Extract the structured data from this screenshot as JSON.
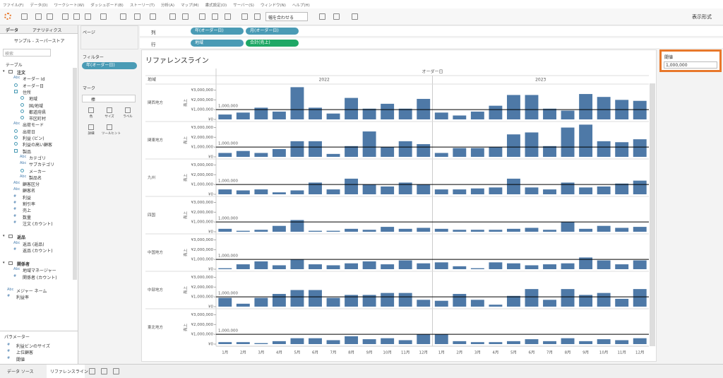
{
  "menu": [
    "ファイル(F)",
    "データ(D)",
    "ワークシート(W)",
    "ダッシュボード(B)",
    "ストーリー(T)",
    "分析(A)",
    "マップ(M)",
    "書式設定(O)",
    "サーバー(S)",
    "ウィンドウ(N)",
    "ヘルプ(H)"
  ],
  "toolbar": {
    "fit": "幅を合わせる",
    "show_me": "表示形式"
  },
  "data_pane": {
    "tabs": [
      "データ",
      "アナリティクス"
    ],
    "source": "サンプル - スーパーストア",
    "search": "検索",
    "tables_heading": "テーブル",
    "tables": [
      {
        "name": "注文",
        "fields": [
          {
            "icon": "Abc",
            "name": "オーダー Id"
          },
          {
            "name": "オーダー日"
          },
          {
            "name": "住所",
            "fields": [
              {
                "name": "地域"
              },
              {
                "name": "国/地域"
              },
              {
                "name": "都道府県"
              },
              {
                "name": "市区町村"
              }
            ]
          },
          {
            "icon": "Abc",
            "name": "出荷モード"
          },
          {
            "name": "出荷日"
          },
          {
            "name": "利益 (ビン)"
          },
          {
            "name": "利益の高い顧客"
          },
          {
            "name": "製品",
            "fields": [
              {
                "icon": "Abc",
                "name": "カテゴリ"
              },
              {
                "icon": "Abc",
                "name": "サブカテゴリ"
              },
              {
                "name": "メーカー"
              },
              {
                "icon": "Abc",
                "name": "製品名"
              }
            ]
          },
          {
            "icon": "Abc",
            "name": "顧客区分"
          },
          {
            "icon": "Abc",
            "name": "顧客名"
          },
          {
            "icon": "#",
            "name": "利益"
          },
          {
            "icon": "#",
            "name": "割引率"
          },
          {
            "icon": "#",
            "name": "売上"
          },
          {
            "icon": "#",
            "name": "数量"
          },
          {
            "icon": "#",
            "name": "注文 (カウント)"
          }
        ]
      },
      {
        "name": "返品",
        "fields": [
          {
            "icon": "Abc",
            "name": "返品 (返品)"
          },
          {
            "icon": "#",
            "name": "返品 (カウント)"
          }
        ]
      },
      {
        "name": "関係者",
        "fields": [
          {
            "icon": "Abc",
            "name": "地域マネージャー"
          },
          {
            "icon": "#",
            "name": "関係者 (カウント)"
          }
        ]
      }
    ],
    "extra_fields": [
      {
        "icon": "Abc",
        "name": "メジャー ネーム"
      },
      {
        "icon": "#",
        "name": "利益率"
      }
    ],
    "parameters_heading": "パラメーター",
    "parameters": [
      {
        "icon": "#",
        "name": "利益ビンのサイズ"
      },
      {
        "icon": "#",
        "name": "上位顧客"
      },
      {
        "icon": "#",
        "name": "閾値"
      }
    ]
  },
  "shelves": {
    "pages": "ページ",
    "filters": "フィルター",
    "filter_pills": [
      "年(オーダー日)"
    ],
    "marks": "マーク",
    "mark_type": "棒",
    "mark_buttons": [
      "色",
      "サイズ",
      "ラベル",
      "詳細",
      "ツールヒント"
    ],
    "columns": "列",
    "column_pills": [
      "年(オーダー日)",
      "月(オーダー日)"
    ],
    "rows": "行",
    "row_pills": [
      "地域",
      "合計(売上)"
    ]
  },
  "parameter_card": {
    "title": "閾値",
    "value": "1,000,000"
  },
  "bottom_tabs": [
    "データ ソース",
    "リファレンスライン"
  ],
  "chart_data": {
    "type": "bar",
    "title": "リファレンスライン",
    "column_header": "オーダー日",
    "row_header": "地域",
    "ylabel": "売上",
    "column_groups": [
      "2022",
      "2023"
    ],
    "categories": [
      "1月",
      "2月",
      "3月",
      "4月",
      "5月",
      "6月",
      "7月",
      "8月",
      "9月",
      "10月",
      "11月",
      "12月",
      "1月",
      "2月",
      "3月",
      "4月",
      "5月",
      "6月",
      "7月",
      "8月",
      "9月",
      "10月",
      "11月",
      "12月"
    ],
    "color": "#4e79a7",
    "ylim": [
      0,
      3400000
    ],
    "yticks": [
      {
        "value": 0,
        "label": "¥0"
      },
      {
        "value": 1000000,
        "label": "¥1,000,000"
      },
      {
        "value": 2000000,
        "label": "¥2,000,000"
      },
      {
        "value": 3000000,
        "label": "¥3,000,000"
      }
    ],
    "reference_line": {
      "value": 1000000,
      "label": "1,000,000",
      "color": "#000000"
    },
    "series": [
      {
        "name": "関西地方",
        "values": [
          500000,
          700000,
          1200000,
          800000,
          3300000,
          1200000,
          600000,
          2200000,
          1100000,
          1600000,
          1100000,
          2100000,
          700000,
          400000,
          800000,
          1400000,
          2500000,
          2500000,
          1100000,
          900000,
          2600000,
          2300000,
          2000000,
          1900000
        ]
      },
      {
        "name": "関東地方",
        "values": [
          400000,
          600000,
          400000,
          800000,
          1600000,
          1600000,
          300000,
          1100000,
          2600000,
          1000000,
          1600000,
          1300000,
          400000,
          900000,
          900000,
          1000000,
          2300000,
          2500000,
          1100000,
          3000000,
          3300000,
          1600000,
          1500000,
          1800000
        ]
      },
      {
        "name": "九州",
        "values": [
          500000,
          400000,
          500000,
          200000,
          400000,
          1200000,
          500000,
          1600000,
          1000000,
          800000,
          1200000,
          1000000,
          500000,
          500000,
          600000,
          700000,
          1600000,
          700000,
          500000,
          1200000,
          700000,
          800000,
          1100000,
          1400000
        ]
      },
      {
        "name": "四国",
        "values": [
          300000,
          100000,
          200000,
          600000,
          1200000,
          100000,
          100000,
          300000,
          200000,
          500000,
          300000,
          400000,
          300000,
          200000,
          200000,
          200000,
          300000,
          400000,
          200000,
          1000000,
          300000,
          600000,
          400000,
          500000
        ]
      },
      {
        "name": "中国地方",
        "values": [
          100000,
          500000,
          800000,
          400000,
          1000000,
          500000,
          400000,
          600000,
          800000,
          500000,
          900000,
          600000,
          700000,
          300000,
          100000,
          700000,
          600000,
          400000,
          500000,
          600000,
          1200000,
          900000,
          500000,
          900000
        ]
      },
      {
        "name": "中部地方",
        "values": [
          900000,
          300000,
          900000,
          1300000,
          1700000,
          1700000,
          900000,
          1200000,
          1200000,
          1400000,
          1400000,
          700000,
          600000,
          1300000,
          700000,
          200000,
          1100000,
          1800000,
          700000,
          1800000,
          1200000,
          1400000,
          800000,
          1800000
        ]
      },
      {
        "name": "東北地方",
        "values": [
          200000,
          200000,
          100000,
          300000,
          600000,
          600000,
          400000,
          800000,
          500000,
          600000,
          400000,
          1000000,
          1000000,
          300000,
          200000,
          200000,
          300000,
          500000,
          300000,
          600000,
          300000,
          500000,
          400000,
          600000
        ]
      }
    ]
  }
}
